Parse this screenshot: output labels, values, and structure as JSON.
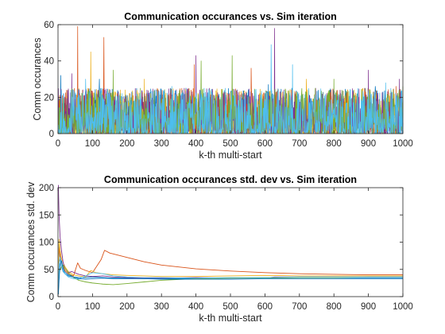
{
  "chart_data": [
    {
      "type": "line",
      "title": "Communication occurances vs. Sim iteration",
      "xlabel": "k-th multi-start",
      "ylabel": "Comm occurances",
      "xlim": [
        0,
        1000
      ],
      "ylim": [
        0,
        60
      ],
      "xticks": [
        0,
        100,
        200,
        300,
        400,
        500,
        600,
        700,
        800,
        900,
        1000
      ],
      "yticks": [
        0,
        20,
        40,
        60
      ],
      "grid": false,
      "n_points": 1000,
      "typical_range": [
        0,
        25
      ],
      "series": [
        {
          "color": "#0072BD",
          "seed": 11,
          "peaks": [
            [
              8,
              32
            ],
            [
              120,
              30
            ],
            [
              290,
              24
            ],
            [
              610,
              27
            ],
            [
              920,
              26
            ]
          ]
        },
        {
          "color": "#D95319",
          "seed": 23,
          "peaks": [
            [
              57,
              59
            ],
            [
              133,
              53
            ],
            [
              395,
              38
            ],
            [
              560,
              36
            ],
            [
              980,
              26
            ]
          ]
        },
        {
          "color": "#EDB120",
          "seed": 37,
          "peaks": [
            [
              95,
              45
            ],
            [
              250,
              30
            ],
            [
              720,
              30
            ],
            [
              840,
              24
            ]
          ]
        },
        {
          "color": "#7E2F8E",
          "seed": 41,
          "peaks": [
            [
              40,
              33
            ],
            [
              400,
              43
            ],
            [
              628,
              58
            ],
            [
              900,
              35
            ],
            [
              990,
              30
            ]
          ]
        },
        {
          "color": "#77AC30",
          "seed": 53,
          "peaks": [
            [
              160,
              35
            ],
            [
              415,
              40
            ],
            [
              505,
              43
            ],
            [
              800,
              30
            ],
            [
              1000,
              26
            ]
          ]
        },
        {
          "color": "#4DBEEE",
          "seed": 67,
          "peaks": [
            [
              80,
              30
            ],
            [
              330,
              26
            ],
            [
              618,
              49
            ],
            [
              680,
              38
            ],
            [
              950,
              28
            ]
          ]
        }
      ]
    },
    {
      "type": "line",
      "title": "Communication occurances std. dev vs. Sim iteration",
      "xlabel": "k-th multi-start",
      "ylabel": "Comm occurances std. dev",
      "xlim": [
        0,
        1000
      ],
      "ylim": [
        0,
        200
      ],
      "xticks": [
        0,
        100,
        200,
        300,
        400,
        500,
        600,
        700,
        800,
        900,
        1000
      ],
      "yticks": [
        0,
        50,
        100,
        150,
        200
      ],
      "grid": false,
      "series": [
        {
          "color": "#0072BD",
          "x": [
            1,
            3,
            6,
            10,
            15,
            20,
            30,
            45,
            60,
            80,
            100,
            130,
            160,
            200,
            250,
            300,
            400,
            500,
            600,
            700,
            800,
            900,
            1000
          ],
          "y": [
            8,
            95,
            70,
            55,
            46,
            42,
            38,
            36,
            35,
            35,
            36,
            35,
            34,
            34,
            33,
            33,
            33,
            34,
            35,
            35,
            35,
            35,
            35
          ]
        },
        {
          "color": "#D95319",
          "x": [
            1,
            3,
            6,
            10,
            15,
            20,
            30,
            45,
            57,
            65,
            80,
            100,
            125,
            135,
            150,
            200,
            250,
            300,
            400,
            500,
            600,
            700,
            800,
            900,
            1000
          ],
          "y": [
            20,
            90,
            75,
            62,
            55,
            48,
            42,
            38,
            62,
            52,
            48,
            44,
            68,
            85,
            80,
            72,
            64,
            58,
            51,
            47,
            44,
            42,
            41,
            40,
            40
          ]
        },
        {
          "color": "#EDB120",
          "x": [
            1,
            3,
            6,
            10,
            15,
            20,
            30,
            45,
            60,
            80,
            95,
            110,
            130,
            160,
            200,
            250,
            300,
            400,
            500,
            600,
            700,
            800,
            900,
            1000
          ],
          "y": [
            15,
            105,
            85,
            70,
            62,
            55,
            46,
            40,
            38,
            36,
            48,
            44,
            42,
            40,
            39,
            38,
            37,
            37,
            38,
            39,
            38,
            38,
            38,
            38
          ]
        },
        {
          "color": "#7E2F8E",
          "x": [
            1,
            3,
            6,
            10,
            15,
            20,
            30,
            40,
            60,
            80,
            100,
            130,
            160,
            200,
            250,
            300,
            400,
            500,
            600,
            628,
            700,
            800,
            900,
            1000
          ],
          "y": [
            205,
            150,
            110,
            85,
            62,
            52,
            44,
            46,
            41,
            38,
            37,
            38,
            36,
            35,
            34,
            34,
            35,
            34,
            34,
            36,
            36,
            36,
            36,
            36
          ]
        },
        {
          "color": "#77AC30",
          "x": [
            1,
            3,
            6,
            10,
            15,
            20,
            30,
            45,
            60,
            80,
            100,
            130,
            160,
            200,
            250,
            300,
            400,
            500,
            600,
            700,
            800,
            900,
            1000
          ],
          "y": [
            5,
            40,
            50,
            55,
            58,
            52,
            44,
            35,
            30,
            27,
            25,
            23,
            22,
            24,
            27,
            30,
            33,
            34,
            34,
            35,
            35,
            36,
            36
          ]
        },
        {
          "color": "#4DBEEE",
          "x": [
            1,
            3,
            6,
            10,
            15,
            20,
            30,
            45,
            60,
            80,
            100,
            130,
            160,
            200,
            250,
            300,
            400,
            500,
            600,
            700,
            800,
            900,
            1000
          ],
          "y": [
            10,
            60,
            72,
            58,
            48,
            42,
            36,
            33,
            32,
            38,
            44,
            42,
            38,
            36,
            35,
            35,
            34,
            35,
            35,
            36,
            36,
            36,
            36
          ]
        },
        {
          "color": "#0072BD",
          "x": [
            1,
            3,
            6,
            10,
            15,
            20,
            30,
            45,
            60,
            80,
            100,
            130,
            160,
            200,
            250,
            300,
            400,
            500,
            600,
            700,
            800,
            900,
            1000
          ],
          "y": [
            4,
            30,
            60,
            66,
            52,
            45,
            40,
            36,
            33,
            32,
            33,
            34,
            33,
            33,
            33,
            32,
            32,
            32,
            33,
            33,
            33,
            33,
            33
          ]
        }
      ]
    }
  ]
}
